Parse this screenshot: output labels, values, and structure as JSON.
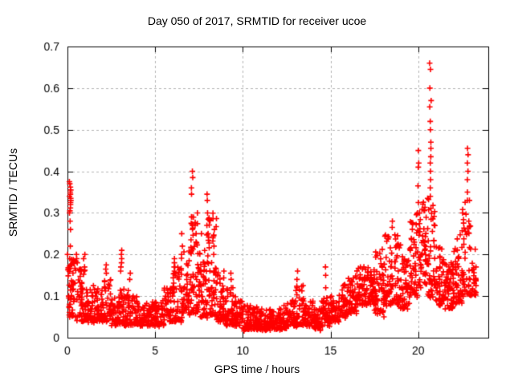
{
  "chart_data": {
    "type": "scatter",
    "title": "Day 050 of 2017, SRMTID for receiver ucoe",
    "xlabel": "GPS time / hours",
    "ylabel": "SRMTID / TECUs",
    "xlim": [
      0,
      24
    ],
    "ylim": [
      0,
      0.7
    ],
    "xtick_values": [
      0,
      5,
      10,
      15,
      20
    ],
    "xtick_labels": [
      "0",
      "5",
      "10",
      "15",
      "20"
    ],
    "ytick_values": [
      0,
      0.1,
      0.2,
      0.3,
      0.4,
      0.5,
      0.6,
      0.7
    ],
    "ytick_labels": [
      "0",
      "0.1",
      "0.2",
      "0.3",
      "0.4",
      "0.5",
      "0.6",
      "0.7"
    ],
    "grid": "dashed",
    "legend": "none",
    "frame_color": "#000000",
    "grid_color": "#b3b3b3",
    "marker": {
      "shape": "plus",
      "color": "#ff0000",
      "size": 7
    },
    "series": [
      {
        "name": "SRMTID",
        "bands": [
          [
            0.0,
            0.5,
            0.05,
            0.2,
            55
          ],
          [
            0.5,
            1.0,
            0.04,
            0.17,
            48
          ],
          [
            1.0,
            1.5,
            0.04,
            0.13,
            46
          ],
          [
            1.5,
            2.0,
            0.04,
            0.12,
            46
          ],
          [
            2.0,
            2.5,
            0.04,
            0.14,
            46
          ],
          [
            2.5,
            3.0,
            0.03,
            0.1,
            46
          ],
          [
            3.0,
            3.5,
            0.03,
            0.12,
            46
          ],
          [
            3.5,
            4.0,
            0.03,
            0.1,
            46
          ],
          [
            4.0,
            4.5,
            0.03,
            0.08,
            42
          ],
          [
            4.5,
            5.0,
            0.03,
            0.09,
            42
          ],
          [
            5.0,
            5.5,
            0.03,
            0.09,
            42
          ],
          [
            5.5,
            6.0,
            0.04,
            0.12,
            42
          ],
          [
            6.0,
            6.5,
            0.04,
            0.17,
            46
          ],
          [
            6.5,
            7.0,
            0.05,
            0.22,
            46
          ],
          [
            7.0,
            7.5,
            0.06,
            0.3,
            58
          ],
          [
            7.5,
            8.0,
            0.05,
            0.25,
            52
          ],
          [
            8.0,
            8.5,
            0.05,
            0.3,
            52
          ],
          [
            8.5,
            9.0,
            0.04,
            0.16,
            46
          ],
          [
            9.0,
            9.5,
            0.03,
            0.12,
            46
          ],
          [
            9.5,
            10.0,
            0.03,
            0.1,
            46
          ],
          [
            10.0,
            10.5,
            0.02,
            0.08,
            46
          ],
          [
            10.5,
            11.0,
            0.02,
            0.08,
            46
          ],
          [
            11.0,
            11.5,
            0.02,
            0.07,
            46
          ],
          [
            11.5,
            12.0,
            0.02,
            0.07,
            46
          ],
          [
            12.0,
            12.5,
            0.02,
            0.08,
            46
          ],
          [
            12.5,
            13.0,
            0.03,
            0.09,
            46
          ],
          [
            13.0,
            13.5,
            0.03,
            0.13,
            46
          ],
          [
            13.5,
            14.0,
            0.03,
            0.09,
            46
          ],
          [
            14.0,
            14.5,
            0.02,
            0.07,
            46
          ],
          [
            14.5,
            15.0,
            0.03,
            0.1,
            46
          ],
          [
            15.0,
            15.5,
            0.04,
            0.1,
            46
          ],
          [
            15.5,
            16.0,
            0.05,
            0.13,
            46
          ],
          [
            16.0,
            16.5,
            0.06,
            0.15,
            48
          ],
          [
            16.5,
            17.0,
            0.08,
            0.17,
            48
          ],
          [
            17.0,
            17.5,
            0.08,
            0.19,
            48
          ],
          [
            17.5,
            18.0,
            0.06,
            0.22,
            48
          ],
          [
            18.0,
            18.5,
            0.08,
            0.26,
            48
          ],
          [
            18.5,
            19.0,
            0.08,
            0.28,
            48
          ],
          [
            19.0,
            19.5,
            0.07,
            0.2,
            48
          ],
          [
            19.5,
            20.0,
            0.1,
            0.3,
            52
          ],
          [
            20.0,
            20.5,
            0.12,
            0.33,
            52
          ],
          [
            20.5,
            21.0,
            0.1,
            0.35,
            52
          ],
          [
            21.0,
            21.5,
            0.08,
            0.22,
            52
          ],
          [
            21.5,
            22.0,
            0.07,
            0.18,
            52
          ],
          [
            22.0,
            22.5,
            0.08,
            0.25,
            52
          ],
          [
            22.5,
            23.0,
            0.1,
            0.33,
            52
          ],
          [
            23.0,
            23.3,
            0.1,
            0.22,
            26
          ]
        ],
        "columns": [
          {
            "t": 0.15,
            "values": [
              0.375,
              0.37,
              0.362,
              0.355,
              0.35,
              0.345,
              0.34,
              0.335,
              0.33,
              0.325,
              0.32,
              0.312,
              0.305,
              0.3,
              0.28,
              0.26,
              0.22,
              0.19
            ]
          },
          {
            "t": 0.55,
            "values": [
              0.2,
              0.19,
              0.18
            ]
          },
          {
            "t": 0.95,
            "values": [
              0.2,
              0.19,
              0.17,
              0.16
            ]
          },
          {
            "t": 2.2,
            "values": [
              0.175,
              0.165,
              0.155
            ]
          },
          {
            "t": 3.05,
            "values": [
              0.21,
              0.2,
              0.19,
              0.18,
              0.17,
              0.16
            ]
          },
          {
            "t": 3.6,
            "values": [
              0.155,
              0.14
            ]
          },
          {
            "t": 6.1,
            "values": [
              0.19,
              0.18,
              0.17,
              0.16,
              0.15
            ]
          },
          {
            "t": 6.55,
            "values": [
              0.25,
              0.22,
              0.2
            ]
          },
          {
            "t": 7.1,
            "values": [
              0.4,
              0.385,
              0.36,
              0.345,
              0.29,
              0.275
            ]
          },
          {
            "t": 7.3,
            "values": [
              0.27,
              0.25,
              0.23
            ]
          },
          {
            "t": 8.0,
            "values": [
              0.345,
              0.33,
              0.3,
              0.285,
              0.27,
              0.25
            ]
          },
          {
            "t": 8.35,
            "values": [
              0.26,
              0.24,
              0.22,
              0.2
            ]
          },
          {
            "t": 9.3,
            "values": [
              0.155,
              0.14,
              0.12
            ]
          },
          {
            "t": 13.1,
            "values": [
              0.16,
              0.14,
              0.12
            ]
          },
          {
            "t": 14.7,
            "values": [
              0.17,
              0.15,
              0.12
            ]
          },
          {
            "t": 18.05,
            "values": [
              0.13,
              0.11,
              0.095,
              0.08,
              0.065,
              0.05
            ]
          },
          {
            "t": 20.0,
            "values": [
              0.45,
              0.42,
              0.41,
              0.365,
              0.325,
              0.3
            ]
          },
          {
            "t": 20.7,
            "values": [
              0.66,
              0.645,
              0.6,
              0.57,
              0.555,
              0.52,
              0.5,
              0.47,
              0.455,
              0.435,
              0.42,
              0.4,
              0.38,
              0.36,
              0.34
            ]
          },
          {
            "t": 22.8,
            "values": [
              0.455,
              0.44,
              0.42,
              0.4,
              0.38,
              0.35,
              0.33
            ]
          }
        ]
      }
    ]
  }
}
